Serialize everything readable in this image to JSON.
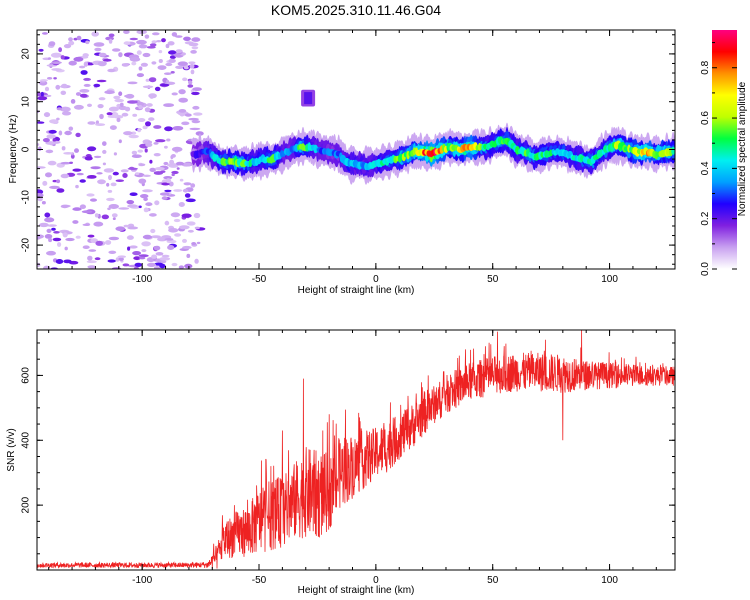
{
  "title": "KOM5.2025.310.11.46.G04",
  "chart_data": [
    {
      "type": "heatmap",
      "name": "spectrogram",
      "xlabel": "Height of straight line (km)",
      "ylabel": "Frequency (Hz)",
      "xlim": [
        -145,
        128
      ],
      "ylim": [
        -25,
        25
      ],
      "xticks": [
        -100,
        -50,
        0,
        50,
        100
      ],
      "xtick_labels": [
        "-100",
        "-50",
        "0",
        "50",
        "100"
      ],
      "yticks": [
        20,
        10,
        0,
        -10,
        -20
      ],
      "ytick_labels": [
        "20",
        "10",
        "0",
        "-10",
        "-20"
      ],
      "noise_region_x": [
        -145,
        -75
      ],
      "signal_track": {
        "x": [
          -78,
          -72,
          -66,
          -60,
          -56,
          -52,
          -48,
          -44,
          -40,
          -36,
          -32,
          -28,
          -24,
          -20,
          -16,
          -12,
          -8,
          -4,
          0,
          4,
          8,
          12,
          16,
          20,
          24,
          28,
          32,
          36,
          40,
          44,
          48,
          52,
          56,
          60,
          64,
          68,
          72,
          76,
          80,
          84,
          88,
          92,
          96,
          100,
          104,
          108,
          112,
          116,
          120,
          124,
          128
        ],
        "freq": [
          -1,
          -0.5,
          -2.5,
          -2.5,
          -3,
          -2.5,
          -2,
          -2,
          -1,
          0,
          0.5,
          0.5,
          0,
          -0.5,
          -1,
          -3,
          -3,
          -3.5,
          -3,
          -2.5,
          -2,
          -1.5,
          -0.5,
          -0.5,
          -1,
          0,
          0.5,
          0,
          0.5,
          0.5,
          0.5,
          1.5,
          2,
          0,
          -0.5,
          -1.5,
          -1,
          -0.5,
          -0.5,
          -1.5,
          -2,
          -2.5,
          -1,
          0.5,
          1,
          0,
          -0.5,
          -0.5,
          -1,
          -0.5,
          -0.5
        ],
        "amp": [
          0.2,
          0.3,
          0.5,
          0.55,
          0.5,
          0.4,
          0.45,
          0.5,
          0.35,
          0.3,
          0.55,
          0.45,
          0.3,
          0.3,
          0.3,
          0.4,
          0.35,
          0.35,
          0.4,
          0.45,
          0.5,
          0.55,
          0.6,
          0.75,
          0.9,
          0.7,
          0.55,
          0.65,
          0.75,
          0.55,
          0.45,
          0.5,
          0.55,
          0.45,
          0.5,
          0.45,
          0.5,
          0.45,
          0.45,
          0.4,
          0.45,
          0.5,
          0.45,
          0.5,
          0.6,
          0.55,
          0.6,
          0.75,
          0.55,
          0.65,
          0.5
        ]
      },
      "burst": {
        "x": -29,
        "freq_range": [
          9,
          12
        ],
        "amp": 0.15
      },
      "colorbar": {
        "label": "Normalized spectral amplitude",
        "range": [
          0,
          0.95
        ],
        "ticks": [
          0.0,
          0.2,
          0.4,
          0.6,
          0.8
        ],
        "tick_labels": [
          "0.0",
          "0.2",
          "0.4",
          "0.6",
          "0.8"
        ],
        "colormap": [
          "#ffffff",
          "#c8a0f0",
          "#8020e0",
          "#2000ff",
          "#00a0ff",
          "#00f0f0",
          "#00ff40",
          "#c0ff00",
          "#ffff00",
          "#ff9000",
          "#ff0000",
          "#ff0080"
        ]
      }
    },
    {
      "type": "line",
      "name": "snr",
      "xlabel": "Height of straight line (km)",
      "ylabel": "SNR (v/v)",
      "xlim": [
        -145,
        128
      ],
      "ylim": [
        0,
        740
      ],
      "xticks": [
        -100,
        -50,
        0,
        50,
        100
      ],
      "xtick_labels": [
        "-100",
        "-50",
        "0",
        "50",
        "100"
      ],
      "yticks": [
        200,
        400,
        600
      ],
      "ytick_labels": [
        "200",
        "400",
        "600"
      ],
      "color": "#ee2222",
      "envelope": {
        "x": [
          -145,
          -120,
          -100,
          -80,
          -72,
          -68,
          -65,
          -60,
          -55,
          -50,
          -45,
          -40,
          -35,
          -30,
          -25,
          -20,
          -15,
          -10,
          -5,
          0,
          5,
          10,
          15,
          20,
          25,
          30,
          35,
          40,
          50,
          60,
          70,
          80,
          90,
          100,
          110,
          120,
          128
        ],
        "mean": [
          15,
          15,
          15,
          15,
          16,
          40,
          90,
          110,
          120,
          150,
          170,
          180,
          210,
          240,
          230,
          240,
          300,
          320,
          340,
          360,
          380,
          410,
          440,
          480,
          510,
          540,
          560,
          580,
          600,
          610,
          610,
          605,
          600,
          600,
          600,
          598,
          598
        ],
        "spread": [
          8,
          8,
          8,
          8,
          10,
          40,
          60,
          70,
          80,
          100,
          110,
          110,
          120,
          140,
          140,
          120,
          110,
          100,
          90,
          80,
          80,
          70,
          70,
          70,
          60,
          60,
          60,
          60,
          60,
          60,
          60,
          60,
          45,
          40,
          35,
          30,
          30
        ]
      },
      "peaks": [
        {
          "x": -31,
          "y": 590
        },
        {
          "x": -47,
          "y": 340
        },
        {
          "x": -40,
          "y": 430
        },
        {
          "x": -20,
          "y": 480
        },
        {
          "x": 52,
          "y": 735
        },
        {
          "x": 88,
          "y": 740
        },
        {
          "x": 80,
          "y": 400
        }
      ]
    }
  ]
}
